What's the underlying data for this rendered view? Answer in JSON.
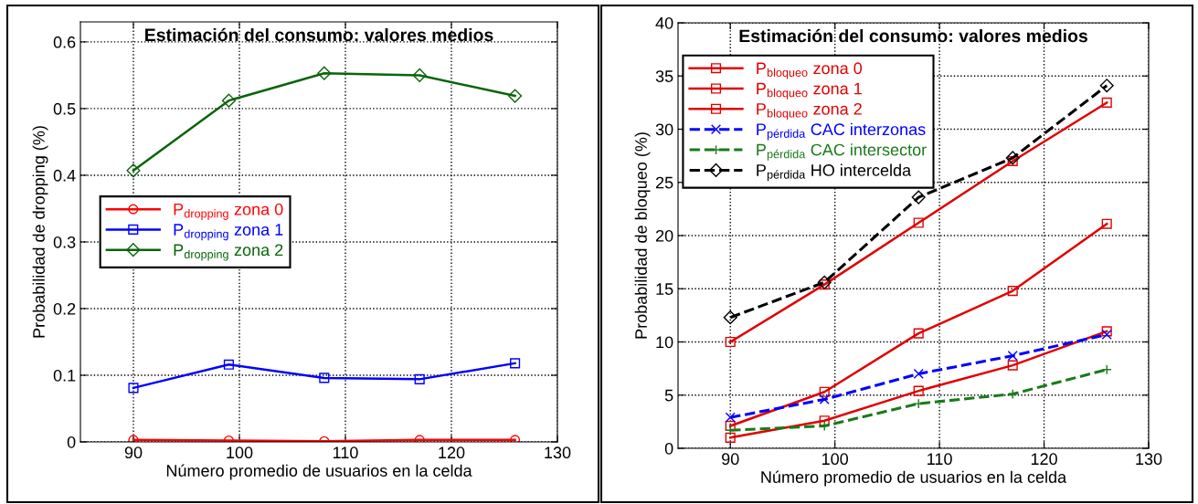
{
  "chart_data": [
    {
      "type": "line",
      "title": "Estimación del consumo: valores medios",
      "xlabel": "Número promedio de usuarios en la celda",
      "ylabel": "Probabilidad de dropping (%)",
      "x": [
        90,
        99,
        108,
        117,
        126
      ],
      "xlim": [
        85,
        130
      ],
      "xticks": [
        90,
        100,
        110,
        120,
        130
      ],
      "ylim": [
        0,
        0.63
      ],
      "yticks": [
        0,
        0.1,
        0.2,
        0.3,
        0.4,
        0.5,
        0.6
      ],
      "grid": true,
      "legend": "center left",
      "line_style": "solid",
      "series": [
        {
          "name": "P$_{dropping}$ zona 0",
          "color": "#ff0000",
          "marker": "circle",
          "values": [
            0.003,
            0.002,
            0.001,
            0.003,
            0.003
          ]
        },
        {
          "name": "P$_{dropping}$ zona 1",
          "color": "#0000ff",
          "marker": "square",
          "values": [
            0.081,
            0.116,
            0.096,
            0.094,
            0.118
          ]
        },
        {
          "name": "P$_{dropping}$ zona 2",
          "color": "#0a640a",
          "marker": "diamond",
          "values": [
            0.407,
            0.512,
            0.553,
            0.55,
            0.519
          ]
        }
      ]
    },
    {
      "type": "line",
      "title": "Estimación del consumo: valores medios",
      "xlabel": "Número promedio de usuarios en la celda",
      "ylabel": "Probabilidad de bloqueo (%)",
      "x": [
        90,
        99,
        108,
        117,
        126
      ],
      "xlim": [
        85,
        130
      ],
      "xticks": [
        90,
        100,
        110,
        120,
        130
      ],
      "ylim": [
        0,
        40
      ],
      "yticks": [
        0,
        5,
        10,
        15,
        20,
        25,
        30,
        35,
        40
      ],
      "grid": true,
      "legend": "upper left",
      "series": [
        {
          "name": "P$_{bloqueo}$ zona 0",
          "color": "#e00000",
          "marker": "square",
          "line_style": "solid",
          "values": [
            1.0,
            2.6,
            5.4,
            7.8,
            11.0
          ]
        },
        {
          "name": "P$_{bloqueo}$ zona 1",
          "color": "#e00000",
          "marker": "square",
          "line_style": "solid",
          "values": [
            2.1,
            5.3,
            10.8,
            14.8,
            21.1
          ]
        },
        {
          "name": "P$_{bloqueo}$ zona 2",
          "color": "#e00000",
          "marker": "square",
          "line_style": "solid",
          "values": [
            10.0,
            15.4,
            21.2,
            27.0,
            32.5
          ]
        },
        {
          "name": "P$_{pérdida}$ CAC interzonas",
          "color": "#0000ff",
          "marker": "cross",
          "line_style": "dashed",
          "values": [
            2.9,
            4.6,
            7.0,
            8.7,
            10.7
          ]
        },
        {
          "name": "P$_{pérdida}$ CAC intersector",
          "color": "#1a7a1a",
          "marker": "plus",
          "line_style": "dashed",
          "values": [
            1.7,
            2.1,
            4.2,
            5.1,
            7.4
          ]
        },
        {
          "name": "P$_{pérdida}$ HO intercelda",
          "color": "#000000",
          "marker": "diamond",
          "line_style": "dashed",
          "values": [
            12.3,
            15.6,
            23.6,
            27.3,
            34.1
          ]
        }
      ]
    }
  ]
}
